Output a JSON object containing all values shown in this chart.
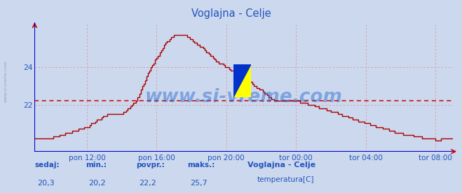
{
  "title": "Voglajna - Celje",
  "title_color": "#2255bb",
  "bg_color": "#ccd8ee",
  "plot_bg_color": "#ccd8ee",
  "line_color": "#aa0000",
  "avg_line_color": "#cc0000",
  "avg_value": 22.2,
  "ymin": 19.5,
  "ymax": 26.4,
  "yticks": [
    22,
    24
  ],
  "tick_color": "#2255bb",
  "grid_color": "#dd8888",
  "grid_alpha": 0.8,
  "watermark": "www.si-vreme.com",
  "watermark_color": "#2266cc",
  "watermark_alpha": 0.45,
  "watermark_fontsize": 19,
  "left_label": "www.si-vreme.com",
  "xtick_labels": [
    "pon 12:00",
    "pon 16:00",
    "pon 20:00",
    "tor 00:00",
    "tor 04:00",
    "tor 08:00"
  ],
  "bottom_labels": [
    "sedaj:",
    "min.:",
    "povpr.:",
    "maks.:"
  ],
  "bottom_values": [
    "20,3",
    "20,2",
    "22,2",
    "25,7"
  ],
  "bottom_station": "Voglajna - Celje",
  "bottom_legend": "temperatura[C]",
  "legend_rect_color": "#cc0000",
  "axis_color": "#0000cc",
  "arrow_color": "#cc0000",
  "n_points": 289,
  "xtick_indices": [
    36,
    84,
    132,
    180,
    228,
    276
  ]
}
